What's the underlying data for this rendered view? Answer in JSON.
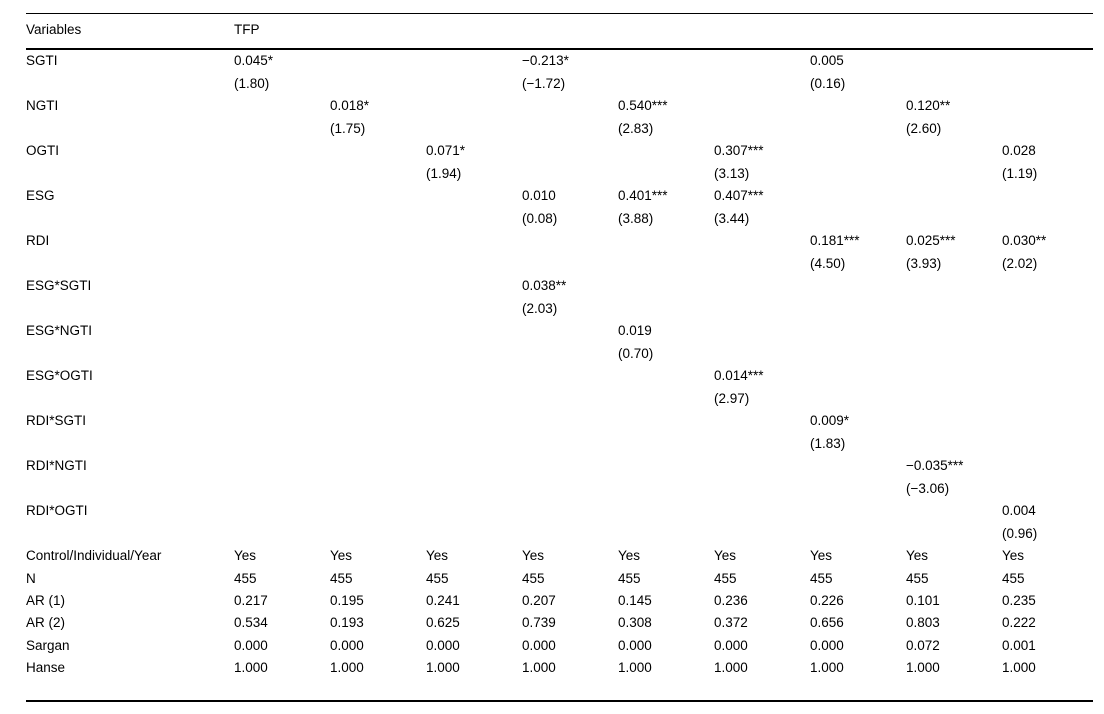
{
  "header": {
    "variables": "Variables",
    "dependent_variable": "TFP"
  },
  "rows": [
    {
      "label": "SGTI",
      "cells": [
        "0.045*\n(1.80)",
        "",
        "",
        "−0.213*\n(−1.72)",
        "",
        "",
        "0.005\n(0.16)",
        "",
        ""
      ]
    },
    {
      "label": "NGTI",
      "cells": [
        "",
        "0.018*\n(1.75)",
        "",
        "",
        "0.540***\n(2.83)",
        "",
        "",
        "0.120**\n(2.60)",
        ""
      ]
    },
    {
      "label": "OGTI",
      "cells": [
        "",
        "",
        "0.071*\n(1.94)",
        "",
        "",
        "0.307***\n(3.13)",
        "",
        "",
        "0.028\n(1.19)"
      ]
    },
    {
      "label": "ESG",
      "cells": [
        "",
        "",
        "",
        "0.010\n(0.08)",
        "0.401***\n(3.88)",
        "0.407***\n(3.44)",
        "",
        "",
        ""
      ]
    },
    {
      "label": "RDI",
      "cells": [
        "",
        "",
        "",
        "",
        "",
        "",
        "0.181***\n(4.50)",
        "0.025***\n(3.93)",
        "0.030**\n(2.02)"
      ]
    },
    {
      "label": "ESG*SGTI",
      "cells": [
        "",
        "",
        "",
        "0.038**\n(2.03)",
        "",
        "",
        "",
        "",
        ""
      ]
    },
    {
      "label": "ESG*NGTI",
      "cells": [
        "",
        "",
        "",
        "",
        "0.019\n(0.70)",
        "",
        "",
        "",
        ""
      ]
    },
    {
      "label": "ESG*OGTI",
      "cells": [
        "",
        "",
        "",
        "",
        "",
        "0.014***\n(2.97)",
        "",
        "",
        ""
      ]
    },
    {
      "label": "RDI*SGTI",
      "cells": [
        "",
        "",
        "",
        "",
        "",
        "",
        "0.009*\n(1.83)",
        "",
        ""
      ]
    },
    {
      "label": "RDI*NGTI",
      "cells": [
        "",
        "",
        "",
        "",
        "",
        "",
        "",
        "−0.035***\n(−3.06)",
        ""
      ]
    },
    {
      "label": "RDI*OGTI",
      "cells": [
        "",
        "",
        "",
        "",
        "",
        "",
        "",
        "",
        "0.004\n(0.96)"
      ]
    }
  ],
  "stats": [
    {
      "label": "Control/Individual/Year",
      "values": [
        "Yes",
        "Yes",
        "Yes",
        "Yes",
        "Yes",
        "Yes",
        "Yes",
        "Yes",
        "Yes"
      ]
    },
    {
      "label": "N",
      "values": [
        "455",
        "455",
        "455",
        "455",
        "455",
        "455",
        "455",
        "455",
        "455"
      ]
    },
    {
      "label": "AR (1)",
      "values": [
        "0.217",
        "0.195",
        "0.241",
        "0.207",
        "0.145",
        "0.236",
        "0.226",
        "0.101",
        "0.235"
      ]
    },
    {
      "label": "AR (2)",
      "values": [
        "0.534",
        "0.193",
        "0.625",
        "0.739",
        "0.308",
        "0.372",
        "0.656",
        "0.803",
        "0.222"
      ]
    },
    {
      "label": "Sargan",
      "values": [
        "0.000",
        "0.000",
        "0.000",
        "0.000",
        "0.000",
        "0.000",
        "0.000",
        "0.072",
        "0.001"
      ]
    },
    {
      "label": "Hanse",
      "values": [
        "1.000",
        "1.000",
        "1.000",
        "1.000",
        "1.000",
        "1.000",
        "1.000",
        "1.000",
        "1.000"
      ]
    }
  ]
}
